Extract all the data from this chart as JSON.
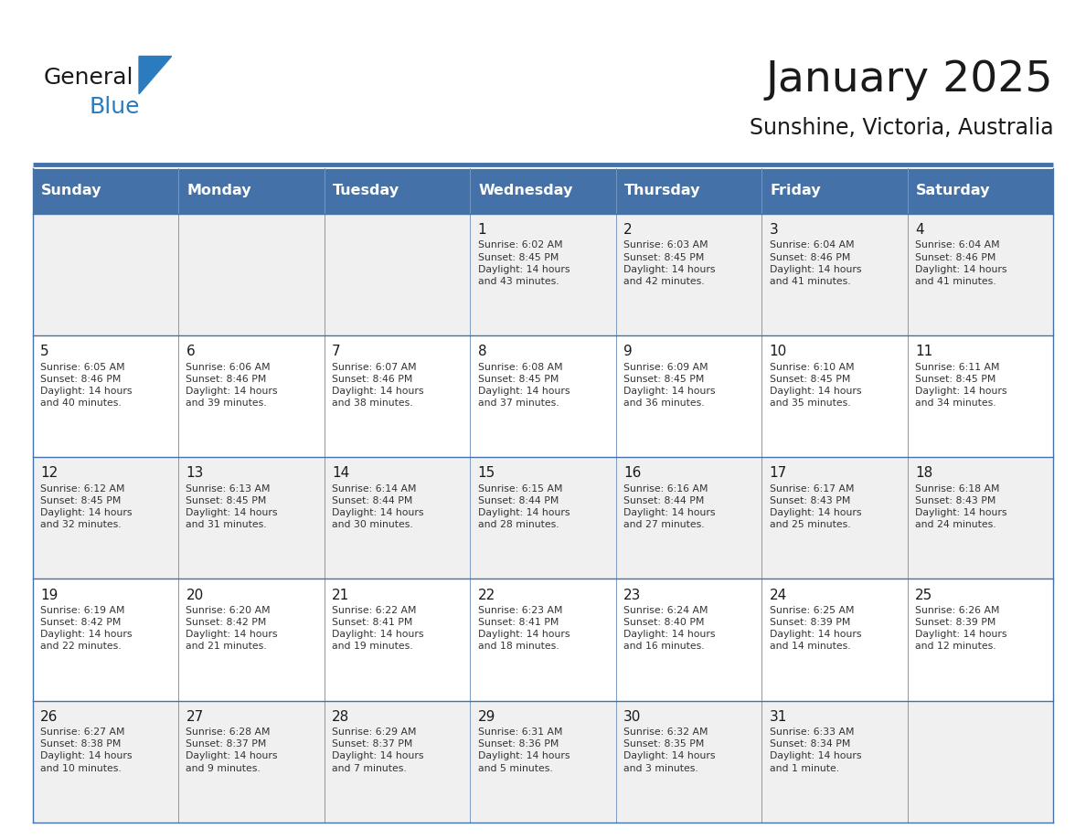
{
  "title": "January 2025",
  "subtitle": "Sunshine, Victoria, Australia",
  "days_of_week": [
    "Sunday",
    "Monday",
    "Tuesday",
    "Wednesday",
    "Thursday",
    "Friday",
    "Saturday"
  ],
  "header_bg": "#4472a8",
  "header_text_color": "#ffffff",
  "row_bg_odd": "#f0f0f0",
  "row_bg_even": "#ffffff",
  "cell_text_color": "#222222",
  "border_color": "#4472a8",
  "calendar_data": [
    [
      null,
      null,
      null,
      {
        "day": 1,
        "sunrise": "6:02 AM",
        "sunset": "8:45 PM",
        "daylight": "14 hours\nand 43 minutes."
      },
      {
        "day": 2,
        "sunrise": "6:03 AM",
        "sunset": "8:45 PM",
        "daylight": "14 hours\nand 42 minutes."
      },
      {
        "day": 3,
        "sunrise": "6:04 AM",
        "sunset": "8:46 PM",
        "daylight": "14 hours\nand 41 minutes."
      },
      {
        "day": 4,
        "sunrise": "6:04 AM",
        "sunset": "8:46 PM",
        "daylight": "14 hours\nand 41 minutes."
      }
    ],
    [
      {
        "day": 5,
        "sunrise": "6:05 AM",
        "sunset": "8:46 PM",
        "daylight": "14 hours\nand 40 minutes."
      },
      {
        "day": 6,
        "sunrise": "6:06 AM",
        "sunset": "8:46 PM",
        "daylight": "14 hours\nand 39 minutes."
      },
      {
        "day": 7,
        "sunrise": "6:07 AM",
        "sunset": "8:46 PM",
        "daylight": "14 hours\nand 38 minutes."
      },
      {
        "day": 8,
        "sunrise": "6:08 AM",
        "sunset": "8:45 PM",
        "daylight": "14 hours\nand 37 minutes."
      },
      {
        "day": 9,
        "sunrise": "6:09 AM",
        "sunset": "8:45 PM",
        "daylight": "14 hours\nand 36 minutes."
      },
      {
        "day": 10,
        "sunrise": "6:10 AM",
        "sunset": "8:45 PM",
        "daylight": "14 hours\nand 35 minutes."
      },
      {
        "day": 11,
        "sunrise": "6:11 AM",
        "sunset": "8:45 PM",
        "daylight": "14 hours\nand 34 minutes."
      }
    ],
    [
      {
        "day": 12,
        "sunrise": "6:12 AM",
        "sunset": "8:45 PM",
        "daylight": "14 hours\nand 32 minutes."
      },
      {
        "day": 13,
        "sunrise": "6:13 AM",
        "sunset": "8:45 PM",
        "daylight": "14 hours\nand 31 minutes."
      },
      {
        "day": 14,
        "sunrise": "6:14 AM",
        "sunset": "8:44 PM",
        "daylight": "14 hours\nand 30 minutes."
      },
      {
        "day": 15,
        "sunrise": "6:15 AM",
        "sunset": "8:44 PM",
        "daylight": "14 hours\nand 28 minutes."
      },
      {
        "day": 16,
        "sunrise": "6:16 AM",
        "sunset": "8:44 PM",
        "daylight": "14 hours\nand 27 minutes."
      },
      {
        "day": 17,
        "sunrise": "6:17 AM",
        "sunset": "8:43 PM",
        "daylight": "14 hours\nand 25 minutes."
      },
      {
        "day": 18,
        "sunrise": "6:18 AM",
        "sunset": "8:43 PM",
        "daylight": "14 hours\nand 24 minutes."
      }
    ],
    [
      {
        "day": 19,
        "sunrise": "6:19 AM",
        "sunset": "8:42 PM",
        "daylight": "14 hours\nand 22 minutes."
      },
      {
        "day": 20,
        "sunrise": "6:20 AM",
        "sunset": "8:42 PM",
        "daylight": "14 hours\nand 21 minutes."
      },
      {
        "day": 21,
        "sunrise": "6:22 AM",
        "sunset": "8:41 PM",
        "daylight": "14 hours\nand 19 minutes."
      },
      {
        "day": 22,
        "sunrise": "6:23 AM",
        "sunset": "8:41 PM",
        "daylight": "14 hours\nand 18 minutes."
      },
      {
        "day": 23,
        "sunrise": "6:24 AM",
        "sunset": "8:40 PM",
        "daylight": "14 hours\nand 16 minutes."
      },
      {
        "day": 24,
        "sunrise": "6:25 AM",
        "sunset": "8:39 PM",
        "daylight": "14 hours\nand 14 minutes."
      },
      {
        "day": 25,
        "sunrise": "6:26 AM",
        "sunset": "8:39 PM",
        "daylight": "14 hours\nand 12 minutes."
      }
    ],
    [
      {
        "day": 26,
        "sunrise": "6:27 AM",
        "sunset": "8:38 PM",
        "daylight": "14 hours\nand 10 minutes."
      },
      {
        "day": 27,
        "sunrise": "6:28 AM",
        "sunset": "8:37 PM",
        "daylight": "14 hours\nand 9 minutes."
      },
      {
        "day": 28,
        "sunrise": "6:29 AM",
        "sunset": "8:37 PM",
        "daylight": "14 hours\nand 7 minutes."
      },
      {
        "day": 29,
        "sunrise": "6:31 AM",
        "sunset": "8:36 PM",
        "daylight": "14 hours\nand 5 minutes."
      },
      {
        "day": 30,
        "sunrise": "6:32 AM",
        "sunset": "8:35 PM",
        "daylight": "14 hours\nand 3 minutes."
      },
      {
        "day": 31,
        "sunrise": "6:33 AM",
        "sunset": "8:34 PM",
        "daylight": "14 hours\nand 1 minute."
      },
      null
    ]
  ],
  "logo_general_color": "#1a1a1a",
  "logo_blue_color": "#2b7bbf",
  "logo_triangle_color": "#2b7bbf"
}
